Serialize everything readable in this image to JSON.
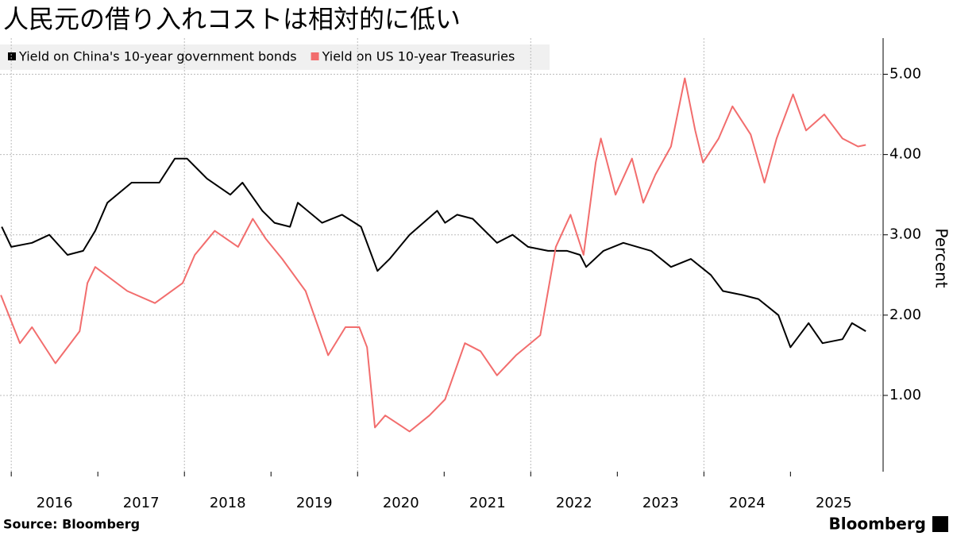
{
  "chart_data": {
    "type": "line",
    "title": "人民元の借り入れコストは相対的に低い",
    "y_label": "Percent",
    "source": "Source:  Bloomberg",
    "brand": "Bloomberg",
    "xlim": [
      2015.87,
      2026.07
    ],
    "xticks": [
      {
        "value": 2016,
        "label": "2016"
      },
      {
        "value": 2017,
        "label": "2017"
      },
      {
        "value": 2018,
        "label": "2018"
      },
      {
        "value": 2019,
        "label": "2019"
      },
      {
        "value": 2020,
        "label": "2020"
      },
      {
        "value": 2021,
        "label": "2021"
      },
      {
        "value": 2022,
        "label": "2022"
      },
      {
        "value": 2023,
        "label": "2023"
      },
      {
        "value": 2024,
        "label": "2024"
      },
      {
        "value": 2025,
        "label": "2025"
      }
    ],
    "ylim": [
      0.05,
      5.45
    ],
    "yticks": [
      {
        "value": 1,
        "label": "1.00"
      },
      {
        "value": 2,
        "label": "2.00"
      },
      {
        "value": 3,
        "label": "3.00"
      },
      {
        "value": 4,
        "label": "4.00"
      },
      {
        "value": 5,
        "label": "5.00"
      }
    ],
    "grid": true,
    "legend": "top-left",
    "series": [
      {
        "name": "Yield on China's 10-year government bonds",
        "color": "#000000",
        "x": [
          2015.89,
          2016.0,
          2016.24,
          2016.44,
          2016.65,
          2016.83,
          2016.97,
          2017.11,
          2017.39,
          2017.71,
          2017.89,
          2018.03,
          2018.26,
          2018.53,
          2018.67,
          2018.9,
          2019.04,
          2019.22,
          2019.31,
          2019.59,
          2019.82,
          2020.04,
          2020.23,
          2020.37,
          2020.6,
          2020.92,
          2021.01,
          2021.15,
          2021.33,
          2021.61,
          2021.79,
          2021.97,
          2022.2,
          2022.42,
          2022.57,
          2022.64,
          2022.84,
          2023.07,
          2023.39,
          2023.62,
          2023.85,
          2024.08,
          2024.22,
          2024.45,
          2024.63,
          2024.86,
          2025.0,
          2025.21,
          2025.37,
          2025.6,
          2025.71,
          2025.87
        ],
        "values": [
          3.1,
          2.85,
          2.9,
          3.0,
          2.75,
          2.8,
          3.05,
          3.4,
          3.65,
          3.65,
          3.95,
          3.95,
          3.7,
          3.5,
          3.65,
          3.3,
          3.15,
          3.1,
          3.4,
          3.15,
          3.25,
          3.1,
          2.55,
          2.7,
          3.0,
          3.3,
          3.15,
          3.25,
          3.2,
          2.9,
          3.0,
          2.85,
          2.8,
          2.8,
          2.75,
          2.6,
          2.8,
          2.9,
          2.8,
          2.6,
          2.7,
          2.5,
          2.3,
          2.25,
          2.2,
          2.0,
          1.6,
          1.9,
          1.65,
          1.7,
          1.9,
          1.8
        ]
      },
      {
        "name": "Yield on US 10-year Treasuries",
        "color": "#f26d6d",
        "x": [
          2015.88,
          2016.1,
          2016.24,
          2016.51,
          2016.79,
          2016.88,
          2016.97,
          2017.34,
          2017.66,
          2017.98,
          2018.12,
          2018.35,
          2018.62,
          2018.79,
          2018.94,
          2019.13,
          2019.4,
          2019.66,
          2019.86,
          2020.02,
          2020.11,
          2020.2,
          2020.32,
          2020.6,
          2020.83,
          2021.01,
          2021.24,
          2021.42,
          2021.61,
          2021.83,
          2022.11,
          2022.29,
          2022.46,
          2022.61,
          2022.75,
          2022.81,
          2022.98,
          2023.17,
          2023.3,
          2023.44,
          2023.62,
          2023.78,
          2023.9,
          2023.99,
          2024.17,
          2024.33,
          2024.54,
          2024.7,
          2024.84,
          2025.03,
          2025.18,
          2025.39,
          2025.6,
          2025.78,
          2025.87
        ],
        "values": [
          2.25,
          1.65,
          1.85,
          1.4,
          1.8,
          2.4,
          2.6,
          2.3,
          2.15,
          2.4,
          2.75,
          3.05,
          2.85,
          3.2,
          2.95,
          2.7,
          2.3,
          1.5,
          1.85,
          1.85,
          1.6,
          0.6,
          0.75,
          0.55,
          0.75,
          0.95,
          1.65,
          1.55,
          1.25,
          1.5,
          1.75,
          2.85,
          3.25,
          2.75,
          3.9,
          4.2,
          3.5,
          3.95,
          3.4,
          3.75,
          4.1,
          4.95,
          4.3,
          3.9,
          4.2,
          4.6,
          4.25,
          3.65,
          4.2,
          4.75,
          4.3,
          4.5,
          4.2,
          4.1,
          4.12
        ]
      }
    ]
  }
}
